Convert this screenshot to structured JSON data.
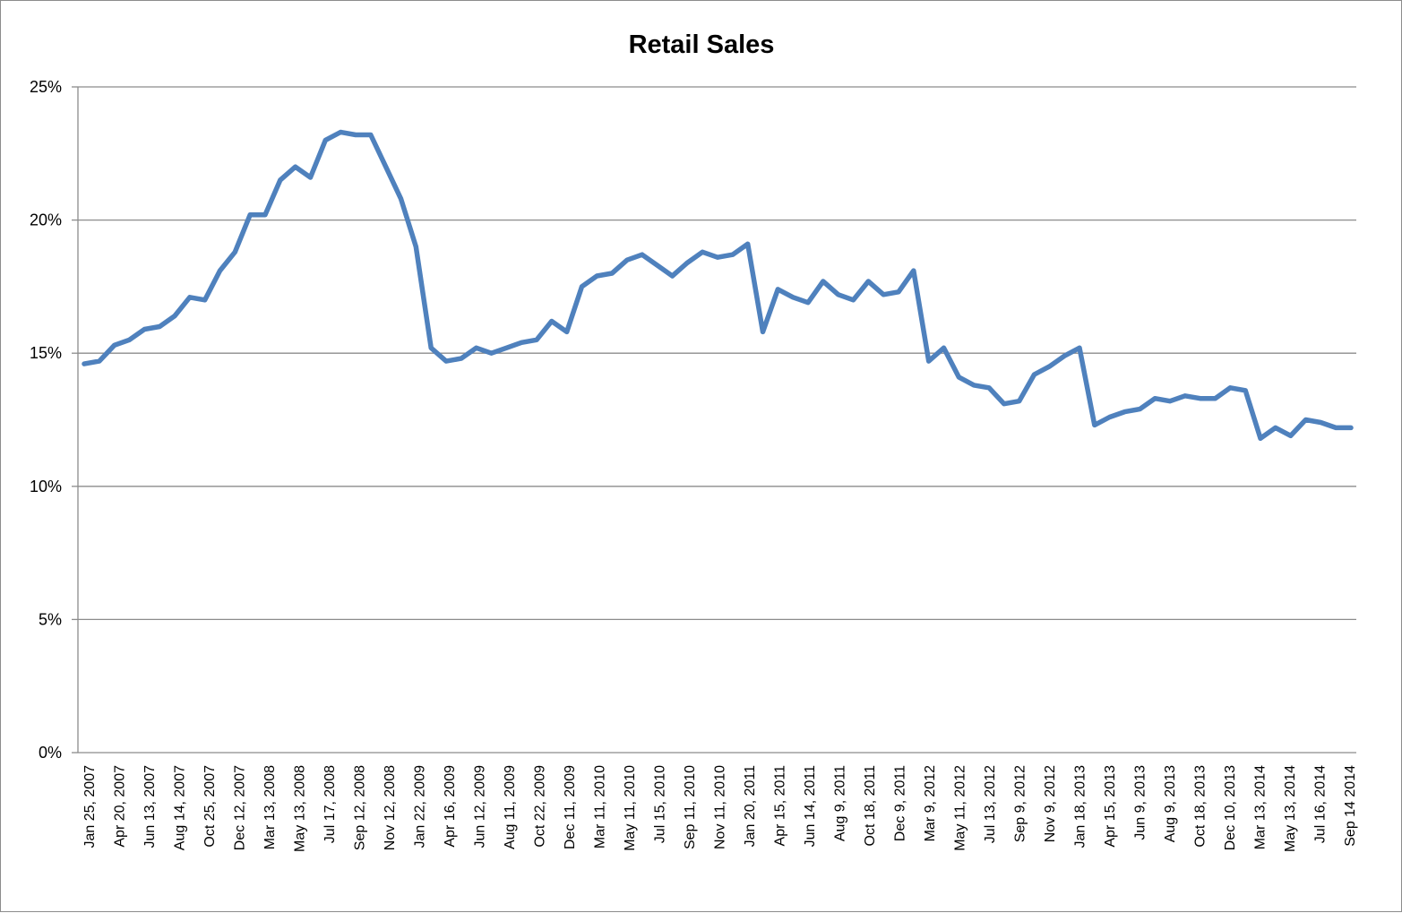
{
  "chart_data": {
    "type": "line",
    "title": "Retail Sales",
    "xlabel": "",
    "ylabel": "",
    "ylim": [
      0,
      25
    ],
    "y_ticks": [
      "0%",
      "5%",
      "10%",
      "15%",
      "20%",
      "25%"
    ],
    "grid": "horizontal",
    "legend": "none",
    "x_tick_labels": [
      "Jan 25, 2007",
      "Apr 20, 2007",
      "Jun 13, 2007",
      "Aug 14, 2007",
      "Oct 25, 2007",
      "Dec 12, 2007",
      "Mar 13, 2008",
      "May 13, 2008",
      "Jul 17, 2008",
      "Sep 12, 2008",
      "Nov 12, 2008",
      "Jan 22, 2009",
      "Apr 16, 2009",
      "Jun 12, 2009",
      "Aug 11, 2009",
      "Oct 22, 2009",
      "Dec 11, 2009",
      "Mar 11, 2010",
      "May 11, 2010",
      "Jul 15, 2010",
      "Sep 11, 2010",
      "Nov 11, 2010",
      "Jan 20, 2011",
      "Apr 15, 2011",
      "Jun 14, 2011",
      "Aug 9, 2011",
      "Oct 18, 2011",
      "Dec 9, 2011",
      "Mar 9, 2012",
      "May 11, 2012",
      "Jul 13, 2012",
      "Sep 9, 2012",
      "Nov 9, 2012",
      "Jan 18, 2013",
      "Apr 15, 2013",
      "Jun 9, 2013",
      "Aug 9, 2013",
      "Oct 18, 2013",
      "Dec 10, 2013",
      "Mar 13, 2014",
      "May 13, 2014",
      "Jul 16, 2014",
      "Sep 14 2014"
    ],
    "series": [
      {
        "color": "#4f81bd",
        "values": [
          14.6,
          14.7,
          15.3,
          15.5,
          15.9,
          16.0,
          16.4,
          17.1,
          17.0,
          18.1,
          18.8,
          20.2,
          20.2,
          21.5,
          22.0,
          21.6,
          23.0,
          23.3,
          23.2,
          23.2,
          22.0,
          20.8,
          19.0,
          15.2,
          14.7,
          14.8,
          15.2,
          15.0,
          15.2,
          15.4,
          15.5,
          16.2,
          15.8,
          17.5,
          17.9,
          18.0,
          18.5,
          18.7,
          18.3,
          17.9,
          18.4,
          18.8,
          18.6,
          18.7,
          19.1,
          15.8,
          17.4,
          17.1,
          16.9,
          17.7,
          17.2,
          17.0,
          17.7,
          17.2,
          17.3,
          18.1,
          14.7,
          15.2,
          14.1,
          13.8,
          13.7,
          13.1,
          13.2,
          14.2,
          14.5,
          14.9,
          15.2,
          12.3,
          12.6,
          12.8,
          12.9,
          13.3,
          13.2,
          13.4,
          13.3,
          13.3,
          13.7,
          13.6,
          11.8,
          12.2,
          11.9,
          12.5,
          12.4,
          12.2,
          12.2
        ]
      }
    ]
  }
}
